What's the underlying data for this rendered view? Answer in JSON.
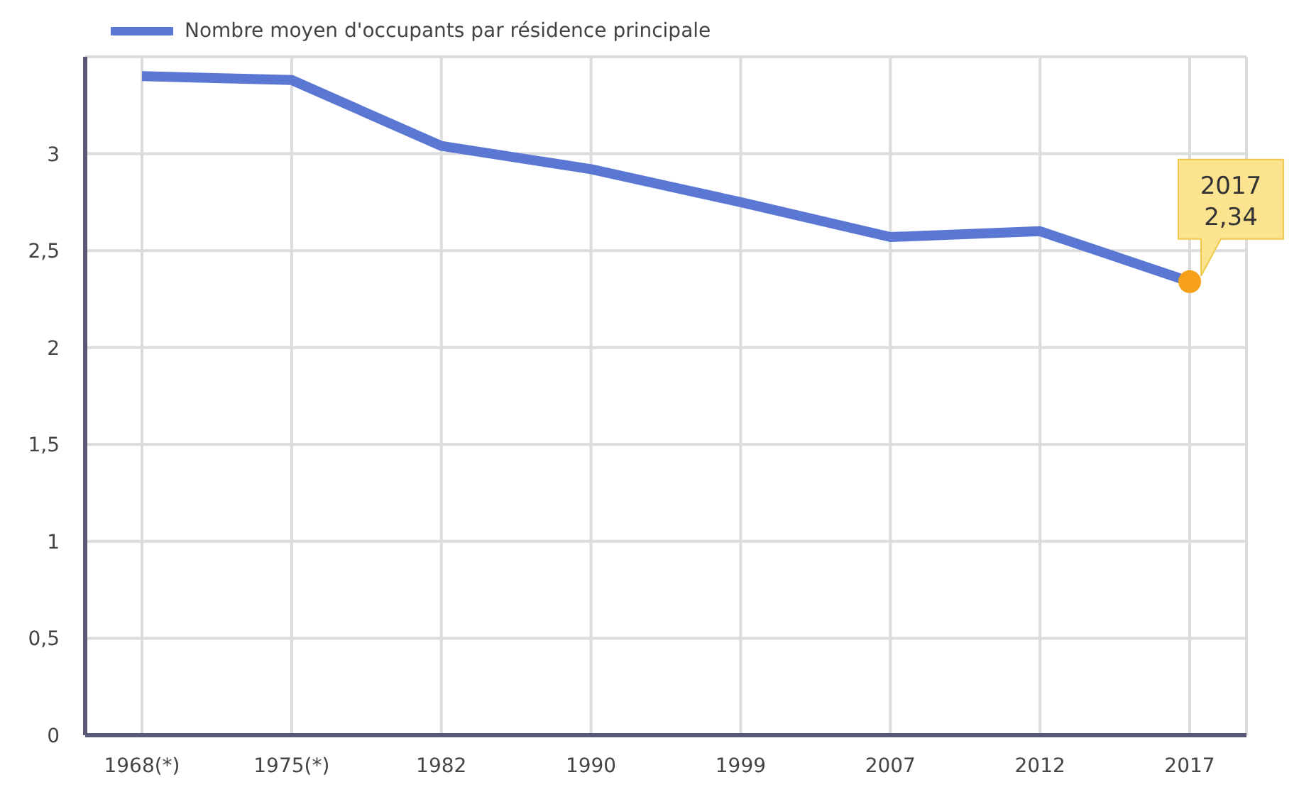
{
  "chart_data": {
    "type": "line",
    "categories": [
      "1968(*)",
      "1975(*)",
      "1982",
      "1990",
      "1999",
      "2007",
      "2012",
      "2017"
    ],
    "series": [
      {
        "name": "Nombre moyen d'occupants par résidence principale",
        "color": "#5b77d4",
        "values": [
          3.4,
          3.38,
          3.04,
          2.92,
          2.75,
          2.57,
          2.6,
          2.34
        ]
      }
    ],
    "ylim": [
      0,
      3.5
    ],
    "yticks": [
      0,
      {
        "value": 0.5,
        "label": "0,5"
      },
      1,
      {
        "value": 1.5,
        "label": "1,5"
      },
      2,
      {
        "value": 2.5,
        "label": "2,5"
      },
      3
    ],
    "grid": true,
    "legend": "top left",
    "marker": "none",
    "line_style": "solid",
    "annotations": [
      {
        "text": "2017\n2,34",
        "x": "2017",
        "y": 2.34
      }
    ]
  }
}
